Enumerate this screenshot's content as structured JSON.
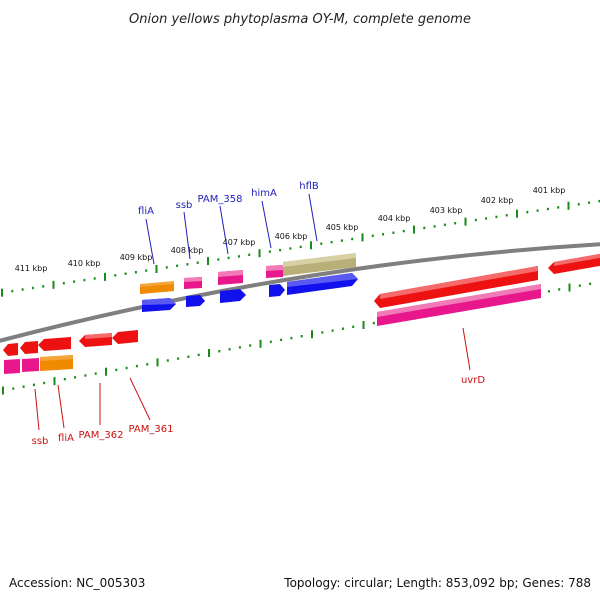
{
  "title": "Onion yellows phytoplasma OY-M, complete genome",
  "footer": {
    "accession": "Accession: NC_005303",
    "summary": "Topology: circular; Length: 853,092 bp; Genes: 788"
  },
  "colors": {
    "background": "#ffffff",
    "backbone": "#7f7f7f",
    "ticks": "#1a8a1a",
    "forward_label": "#1f1fb8",
    "reverse_label": "#cc1111",
    "red": "#ee1111",
    "magenta": "#e8188c",
    "orange": "#f08a00",
    "blue": "#1111ee",
    "khaki": "#b8b078"
  },
  "axis": {
    "unit": "kbp",
    "ticks": [
      {
        "label": "401 kbp"
      },
      {
        "label": "402 kbp"
      },
      {
        "label": "403 kbp"
      },
      {
        "label": "404 kbp"
      },
      {
        "label": "405 kbp"
      },
      {
        "label": "406 kbp"
      },
      {
        "label": "407 kbp"
      },
      {
        "label": "408 kbp"
      },
      {
        "label": "409 kbp"
      },
      {
        "label": "410 kbp"
      },
      {
        "label": "411 kbp"
      }
    ]
  },
  "labels": {
    "forward": [
      {
        "text": "fliA"
      },
      {
        "text": "ssb"
      },
      {
        "text": "PAM_358"
      },
      {
        "text": "himA"
      },
      {
        "text": "hflB"
      }
    ],
    "reverse": [
      {
        "text": "ssb"
      },
      {
        "text": "fliA"
      },
      {
        "text": "PAM_362"
      },
      {
        "text": "PAM_361"
      },
      {
        "text": "uvrD"
      }
    ]
  }
}
